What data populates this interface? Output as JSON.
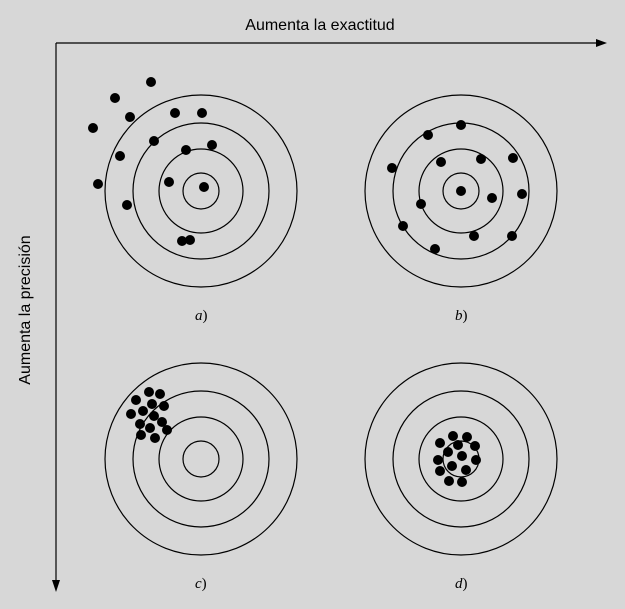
{
  "axes": {
    "x_label": "Aumenta la exactitud",
    "y_label": "Aumenta la precisión"
  },
  "panels": [
    {
      "letter": "a",
      "paren": ")",
      "precision": "low",
      "accuracy": "low"
    },
    {
      "letter": "b",
      "paren": ")",
      "precision": "low",
      "accuracy": "high"
    },
    {
      "letter": "c",
      "paren": ")",
      "precision": "high",
      "accuracy": "low"
    },
    {
      "letter": "d",
      "paren": ")",
      "precision": "high",
      "accuracy": "high"
    }
  ],
  "colors": {
    "background": "#d7d7d7",
    "ink": "#000000"
  }
}
